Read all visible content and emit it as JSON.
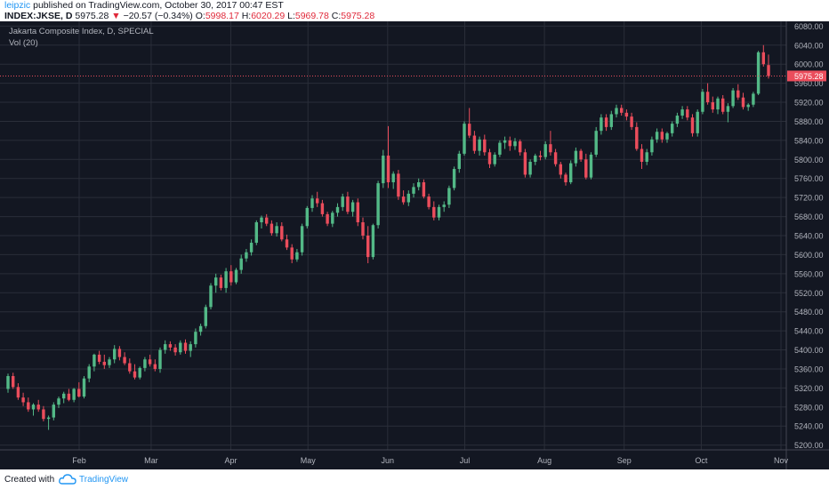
{
  "header": {
    "author": "leipzic",
    "published_text": "published on TradingView.com, October 30, 2017 00:47 EST",
    "symbol_line": "INDEX:JKSE, D",
    "last": "5975.28",
    "change": "−20.57 (−0.34%)",
    "open_label": "O:",
    "open": "5998.17",
    "high_label": "H:",
    "high": "6020.29",
    "low_label": "L:",
    "low": "5969.78",
    "close_label": "C:",
    "close": "5975.28"
  },
  "legend": {
    "title": "Jakarta Composite Index, D, SPECIAL",
    "volume": "Vol (20)"
  },
  "footer": {
    "created_with": "Created with",
    "brand": "TradingView"
  },
  "colors": {
    "background": "#131722",
    "grid": "#2a2e39",
    "up": "#53b987",
    "down": "#eb4d5c",
    "axis_text": "#b2b5be",
    "price_line": "#eb4d5c"
  },
  "chart_data": {
    "type": "candlestick",
    "title": "Jakarta Composite Index, D, SPECIAL",
    "ylim": [
      5190,
      6090
    ],
    "y_ticks": [
      5200,
      5240,
      5280,
      5320,
      5360,
      5400,
      5440,
      5480,
      5520,
      5560,
      5600,
      5640,
      5680,
      5720,
      5760,
      5800,
      5840,
      5880,
      5920,
      5960,
      6000,
      6040,
      6080
    ],
    "y_tick_labels": [
      "5200.00",
      "5240.00",
      "5280.00",
      "5320.00",
      "5360.00",
      "5400.00",
      "5440.00",
      "5480.00",
      "5520.00",
      "5560.00",
      "5600.00",
      "5640.00",
      "5680.00",
      "5720.00",
      "5760.00",
      "5800.00",
      "5840.00",
      "5880.00",
      "5920.00",
      "5960.00",
      "6000.00",
      "6040.00",
      "6080.00"
    ],
    "x_labels": [
      {
        "label": "Feb",
        "date": "2017-02-01"
      },
      {
        "label": "Mar",
        "date": "2017-03-01"
      },
      {
        "label": "Apr",
        "date": "2017-04-01"
      },
      {
        "label": "May",
        "date": "2017-05-01"
      },
      {
        "label": "Jun",
        "date": "2017-06-01"
      },
      {
        "label": "Jul",
        "date": "2017-07-01"
      },
      {
        "label": "Aug",
        "date": "2017-08-01"
      },
      {
        "label": "Sep",
        "date": "2017-09-01"
      },
      {
        "label": "Oct",
        "date": "2017-10-01"
      },
      {
        "label": "Nov",
        "date": "2017-11-01"
      }
    ],
    "last_price": 5975.28,
    "last_price_label": "5975.28",
    "grid": true,
    "candles": [
      {
        "o": 5318,
        "h": 5350,
        "l": 5310,
        "c": 5345
      },
      {
        "o": 5345,
        "h": 5352,
        "l": 5318,
        "c": 5322
      },
      {
        "o": 5322,
        "h": 5330,
        "l": 5295,
        "c": 5300
      },
      {
        "o": 5300,
        "h": 5310,
        "l": 5282,
        "c": 5290
      },
      {
        "o": 5290,
        "h": 5300,
        "l": 5270,
        "c": 5275
      },
      {
        "o": 5275,
        "h": 5288,
        "l": 5262,
        "c": 5285
      },
      {
        "o": 5285,
        "h": 5295,
        "l": 5270,
        "c": 5275
      },
      {
        "o": 5275,
        "h": 5282,
        "l": 5250,
        "c": 5255
      },
      {
        "o": 5255,
        "h": 5262,
        "l": 5232,
        "c": 5258
      },
      {
        "o": 5258,
        "h": 5290,
        "l": 5252,
        "c": 5285
      },
      {
        "o": 5285,
        "h": 5302,
        "l": 5278,
        "c": 5298
      },
      {
        "o": 5298,
        "h": 5312,
        "l": 5288,
        "c": 5308
      },
      {
        "o": 5308,
        "h": 5318,
        "l": 5292,
        "c": 5295
      },
      {
        "o": 5295,
        "h": 5320,
        "l": 5290,
        "c": 5318
      },
      {
        "o": 5318,
        "h": 5332,
        "l": 5300,
        "c": 5302
      },
      {
        "o": 5302,
        "h": 5345,
        "l": 5298,
        "c": 5340
      },
      {
        "o": 5340,
        "h": 5370,
        "l": 5332,
        "c": 5365
      },
      {
        "o": 5365,
        "h": 5392,
        "l": 5355,
        "c": 5390
      },
      {
        "o": 5390,
        "h": 5398,
        "l": 5370,
        "c": 5375
      },
      {
        "o": 5375,
        "h": 5390,
        "l": 5360,
        "c": 5368
      },
      {
        "o": 5368,
        "h": 5385,
        "l": 5362,
        "c": 5380
      },
      {
        "o": 5380,
        "h": 5410,
        "l": 5372,
        "c": 5402
      },
      {
        "o": 5402,
        "h": 5408,
        "l": 5378,
        "c": 5385
      },
      {
        "o": 5385,
        "h": 5395,
        "l": 5368,
        "c": 5372
      },
      {
        "o": 5372,
        "h": 5382,
        "l": 5350,
        "c": 5355
      },
      {
        "o": 5355,
        "h": 5370,
        "l": 5338,
        "c": 5342
      },
      {
        "o": 5342,
        "h": 5365,
        "l": 5338,
        "c": 5362
      },
      {
        "o": 5362,
        "h": 5385,
        "l": 5355,
        "c": 5380
      },
      {
        "o": 5380,
        "h": 5390,
        "l": 5365,
        "c": 5370
      },
      {
        "o": 5370,
        "h": 5380,
        "l": 5355,
        "c": 5360
      },
      {
        "o": 5360,
        "h": 5405,
        "l": 5352,
        "c": 5400
      },
      {
        "o": 5400,
        "h": 5420,
        "l": 5392,
        "c": 5412
      },
      {
        "o": 5412,
        "h": 5418,
        "l": 5398,
        "c": 5405
      },
      {
        "o": 5405,
        "h": 5412,
        "l": 5388,
        "c": 5395
      },
      {
        "o": 5395,
        "h": 5420,
        "l": 5390,
        "c": 5415
      },
      {
        "o": 5415,
        "h": 5422,
        "l": 5392,
        "c": 5398
      },
      {
        "o": 5398,
        "h": 5418,
        "l": 5385,
        "c": 5412
      },
      {
        "o": 5412,
        "h": 5445,
        "l": 5405,
        "c": 5438
      },
      {
        "o": 5438,
        "h": 5455,
        "l": 5430,
        "c": 5450
      },
      {
        "o": 5450,
        "h": 5495,
        "l": 5445,
        "c": 5490
      },
      {
        "o": 5490,
        "h": 5540,
        "l": 5485,
        "c": 5535
      },
      {
        "o": 5535,
        "h": 5560,
        "l": 5520,
        "c": 5552
      },
      {
        "o": 5552,
        "h": 5558,
        "l": 5525,
        "c": 5530
      },
      {
        "o": 5530,
        "h": 5572,
        "l": 5520,
        "c": 5565
      },
      {
        "o": 5565,
        "h": 5578,
        "l": 5535,
        "c": 5542
      },
      {
        "o": 5542,
        "h": 5572,
        "l": 5538,
        "c": 5568
      },
      {
        "o": 5568,
        "h": 5600,
        "l": 5560,
        "c": 5592
      },
      {
        "o": 5592,
        "h": 5612,
        "l": 5585,
        "c": 5605
      },
      {
        "o": 5605,
        "h": 5632,
        "l": 5598,
        "c": 5625
      },
      {
        "o": 5625,
        "h": 5672,
        "l": 5620,
        "c": 5668
      },
      {
        "o": 5668,
        "h": 5682,
        "l": 5655,
        "c": 5678
      },
      {
        "o": 5678,
        "h": 5685,
        "l": 5660,
        "c": 5665
      },
      {
        "o": 5665,
        "h": 5672,
        "l": 5640,
        "c": 5645
      },
      {
        "o": 5645,
        "h": 5668,
        "l": 5638,
        "c": 5660
      },
      {
        "o": 5660,
        "h": 5668,
        "l": 5628,
        "c": 5632
      },
      {
        "o": 5632,
        "h": 5642,
        "l": 5610,
        "c": 5615
      },
      {
        "o": 5615,
        "h": 5622,
        "l": 5582,
        "c": 5590
      },
      {
        "o": 5590,
        "h": 5612,
        "l": 5585,
        "c": 5605
      },
      {
        "o": 5605,
        "h": 5665,
        "l": 5598,
        "c": 5660
      },
      {
        "o": 5660,
        "h": 5702,
        "l": 5655,
        "c": 5698
      },
      {
        "o": 5698,
        "h": 5725,
        "l": 5690,
        "c": 5718
      },
      {
        "o": 5718,
        "h": 5732,
        "l": 5700,
        "c": 5708
      },
      {
        "o": 5708,
        "h": 5715,
        "l": 5680,
        "c": 5685
      },
      {
        "o": 5685,
        "h": 5690,
        "l": 5660,
        "c": 5665
      },
      {
        "o": 5665,
        "h": 5692,
        "l": 5658,
        "c": 5688
      },
      {
        "o": 5688,
        "h": 5708,
        "l": 5680,
        "c": 5700
      },
      {
        "o": 5700,
        "h": 5728,
        "l": 5692,
        "c": 5722
      },
      {
        "o": 5722,
        "h": 5732,
        "l": 5685,
        "c": 5690
      },
      {
        "o": 5690,
        "h": 5715,
        "l": 5680,
        "c": 5710
      },
      {
        "o": 5710,
        "h": 5718,
        "l": 5660,
        "c": 5668
      },
      {
        "o": 5668,
        "h": 5678,
        "l": 5632,
        "c": 5640
      },
      {
        "o": 5640,
        "h": 5660,
        "l": 5582,
        "c": 5595
      },
      {
        "o": 5595,
        "h": 5665,
        "l": 5590,
        "c": 5662
      },
      {
        "o": 5662,
        "h": 5755,
        "l": 5655,
        "c": 5750
      },
      {
        "o": 5750,
        "h": 5820,
        "l": 5740,
        "c": 5808
      },
      {
        "o": 5808,
        "h": 5870,
        "l": 5740,
        "c": 5752
      },
      {
        "o": 5752,
        "h": 5775,
        "l": 5738,
        "c": 5770
      },
      {
        "o": 5770,
        "h": 5778,
        "l": 5715,
        "c": 5722
      },
      {
        "o": 5722,
        "h": 5735,
        "l": 5705,
        "c": 5710
      },
      {
        "o": 5710,
        "h": 5735,
        "l": 5702,
        "c": 5728
      },
      {
        "o": 5728,
        "h": 5750,
        "l": 5720,
        "c": 5742
      },
      {
        "o": 5742,
        "h": 5760,
        "l": 5735,
        "c": 5752
      },
      {
        "o": 5752,
        "h": 5758,
        "l": 5718,
        "c": 5722
      },
      {
        "o": 5722,
        "h": 5728,
        "l": 5695,
        "c": 5700
      },
      {
        "o": 5700,
        "h": 5712,
        "l": 5672,
        "c": 5678
      },
      {
        "o": 5678,
        "h": 5705,
        "l": 5672,
        "c": 5700
      },
      {
        "o": 5700,
        "h": 5712,
        "l": 5690,
        "c": 5705
      },
      {
        "o": 5705,
        "h": 5745,
        "l": 5698,
        "c": 5740
      },
      {
        "o": 5740,
        "h": 5785,
        "l": 5735,
        "c": 5780
      },
      {
        "o": 5780,
        "h": 5818,
        "l": 5772,
        "c": 5812
      },
      {
        "o": 5812,
        "h": 5880,
        "l": 5808,
        "c": 5875
      },
      {
        "o": 5875,
        "h": 5908,
        "l": 5845,
        "c": 5850
      },
      {
        "o": 5850,
        "h": 5860,
        "l": 5812,
        "c": 5818
      },
      {
        "o": 5818,
        "h": 5848,
        "l": 5808,
        "c": 5842
      },
      {
        "o": 5842,
        "h": 5852,
        "l": 5808,
        "c": 5815
      },
      {
        "o": 5815,
        "h": 5822,
        "l": 5782,
        "c": 5790
      },
      {
        "o": 5790,
        "h": 5815,
        "l": 5785,
        "c": 5810
      },
      {
        "o": 5810,
        "h": 5840,
        "l": 5805,
        "c": 5835
      },
      {
        "o": 5835,
        "h": 5848,
        "l": 5822,
        "c": 5840
      },
      {
        "o": 5840,
        "h": 5848,
        "l": 5818,
        "c": 5828
      },
      {
        "o": 5828,
        "h": 5845,
        "l": 5820,
        "c": 5838
      },
      {
        "o": 5838,
        "h": 5842,
        "l": 5808,
        "c": 5815
      },
      {
        "o": 5815,
        "h": 5822,
        "l": 5762,
        "c": 5768
      },
      {
        "o": 5768,
        "h": 5800,
        "l": 5762,
        "c": 5795
      },
      {
        "o": 5795,
        "h": 5812,
        "l": 5788,
        "c": 5808
      },
      {
        "o": 5808,
        "h": 5818,
        "l": 5798,
        "c": 5805
      },
      {
        "o": 5805,
        "h": 5838,
        "l": 5800,
        "c": 5832
      },
      {
        "o": 5832,
        "h": 5860,
        "l": 5808,
        "c": 5815
      },
      {
        "o": 5815,
        "h": 5822,
        "l": 5785,
        "c": 5790
      },
      {
        "o": 5790,
        "h": 5795,
        "l": 5760,
        "c": 5768
      },
      {
        "o": 5768,
        "h": 5772,
        "l": 5745,
        "c": 5752
      },
      {
        "o": 5752,
        "h": 5798,
        "l": 5748,
        "c": 5792
      },
      {
        "o": 5792,
        "h": 5825,
        "l": 5785,
        "c": 5818
      },
      {
        "o": 5818,
        "h": 5822,
        "l": 5795,
        "c": 5800
      },
      {
        "o": 5800,
        "h": 5812,
        "l": 5758,
        "c": 5762
      },
      {
        "o": 5762,
        "h": 5815,
        "l": 5758,
        "c": 5810
      },
      {
        "o": 5810,
        "h": 5868,
        "l": 5805,
        "c": 5860
      },
      {
        "o": 5860,
        "h": 5895,
        "l": 5852,
        "c": 5888
      },
      {
        "o": 5888,
        "h": 5895,
        "l": 5860,
        "c": 5868
      },
      {
        "o": 5868,
        "h": 5902,
        "l": 5862,
        "c": 5895
      },
      {
        "o": 5895,
        "h": 5915,
        "l": 5888,
        "c": 5908
      },
      {
        "o": 5908,
        "h": 5915,
        "l": 5892,
        "c": 5898
      },
      {
        "o": 5898,
        "h": 5905,
        "l": 5882,
        "c": 5890
      },
      {
        "o": 5890,
        "h": 5898,
        "l": 5862,
        "c": 5868
      },
      {
        "o": 5868,
        "h": 5878,
        "l": 5818,
        "c": 5822
      },
      {
        "o": 5822,
        "h": 5832,
        "l": 5780,
        "c": 5795
      },
      {
        "o": 5795,
        "h": 5822,
        "l": 5788,
        "c": 5815
      },
      {
        "o": 5815,
        "h": 5848,
        "l": 5808,
        "c": 5842
      },
      {
        "o": 5842,
        "h": 5865,
        "l": 5835,
        "c": 5858
      },
      {
        "o": 5858,
        "h": 5865,
        "l": 5835,
        "c": 5842
      },
      {
        "o": 5842,
        "h": 5858,
        "l": 5835,
        "c": 5855
      },
      {
        "o": 5855,
        "h": 5880,
        "l": 5848,
        "c": 5875
      },
      {
        "o": 5875,
        "h": 5898,
        "l": 5868,
        "c": 5892
      },
      {
        "o": 5892,
        "h": 5912,
        "l": 5885,
        "c": 5905
      },
      {
        "o": 5905,
        "h": 5912,
        "l": 5882,
        "c": 5888
      },
      {
        "o": 5888,
        "h": 5895,
        "l": 5848,
        "c": 5855
      },
      {
        "o": 5855,
        "h": 5905,
        "l": 5848,
        "c": 5900
      },
      {
        "o": 5900,
        "h": 5948,
        "l": 5895,
        "c": 5942
      },
      {
        "o": 5942,
        "h": 5960,
        "l": 5915,
        "c": 5920
      },
      {
        "o": 5920,
        "h": 5932,
        "l": 5898,
        "c": 5905
      },
      {
        "o": 5905,
        "h": 5932,
        "l": 5895,
        "c": 5928
      },
      {
        "o": 5928,
        "h": 5935,
        "l": 5895,
        "c": 5900
      },
      {
        "o": 5900,
        "h": 5918,
        "l": 5878,
        "c": 5912
      },
      {
        "o": 5912,
        "h": 5950,
        "l": 5908,
        "c": 5945
      },
      {
        "o": 5945,
        "h": 5958,
        "l": 5925,
        "c": 5930
      },
      {
        "o": 5930,
        "h": 5940,
        "l": 5905,
        "c": 5910
      },
      {
        "o": 5910,
        "h": 5918,
        "l": 5902,
        "c": 5915
      },
      {
        "o": 5915,
        "h": 5942,
        "l": 5910,
        "c": 5938
      },
      {
        "o": 5938,
        "h": 6028,
        "l": 5935,
        "c": 6025
      },
      {
        "o": 6025,
        "h": 6040,
        "l": 5995,
        "c": 6000
      },
      {
        "o": 5998.17,
        "h": 6020.29,
        "l": 5969.78,
        "c": 5975.28
      }
    ]
  }
}
